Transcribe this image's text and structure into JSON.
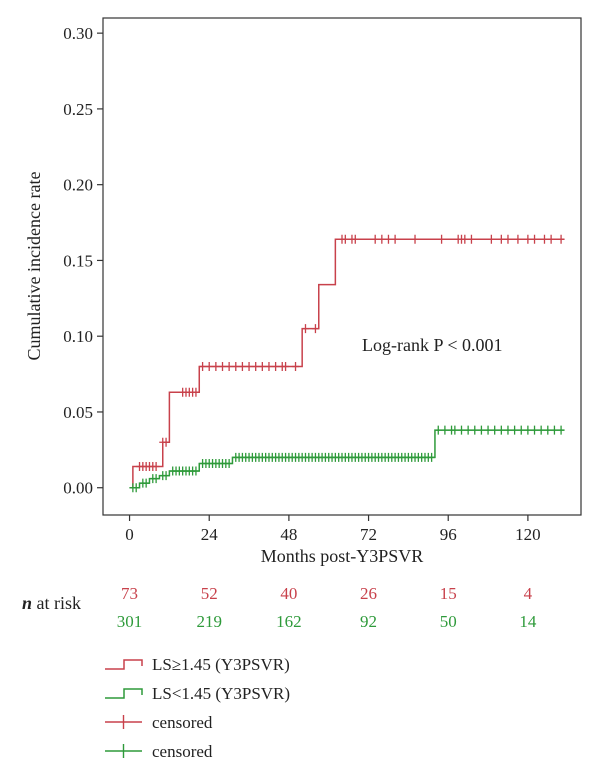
{
  "chart_data": {
    "type": "line",
    "subtype": "step",
    "xlabel": "Months post-Y3PSVR",
    "ylabel": "Cumulative incidence rate",
    "xlim": [
      -8,
      136
    ],
    "ylim": [
      -0.018,
      0.31
    ],
    "xticks": [
      0,
      24,
      48,
      72,
      96,
      120
    ],
    "yticks": [
      0.0,
      0.05,
      0.1,
      0.15,
      0.2,
      0.25,
      0.3
    ],
    "ytick_labels": [
      "0.00",
      "0.05",
      "0.10",
      "0.15",
      "0.20",
      "0.25",
      "0.30"
    ],
    "grid": false,
    "annotation": "Log-rank P < 0.001",
    "series": [
      {
        "name": "LS≥1.45 (Y3PSVR)",
        "color": "#c8414b",
        "steps": [
          [
            0,
            0.0
          ],
          [
            1,
            0.014
          ],
          [
            10,
            0.03
          ],
          [
            12,
            0.063
          ],
          [
            21,
            0.08
          ],
          [
            52,
            0.105
          ],
          [
            57,
            0.134
          ],
          [
            62,
            0.164
          ],
          [
            131,
            0.164
          ]
        ],
        "censored_x": [
          3,
          4,
          5,
          6,
          7,
          8,
          10,
          11,
          16,
          17,
          18,
          19,
          20,
          22,
          24,
          26,
          28,
          30,
          32,
          34,
          36,
          38,
          40,
          42,
          44,
          46,
          47,
          50,
          53,
          56,
          64,
          65,
          67,
          68,
          74,
          76,
          78,
          80,
          86,
          94,
          99,
          100,
          101,
          103,
          109,
          112,
          114,
          117,
          120,
          122,
          125,
          127,
          130
        ],
        "risk_label": "",
        "at_risk": [
          73,
          52,
          40,
          26,
          15,
          4
        ]
      },
      {
        "name": "LS<1.45 (Y3PSVR)",
        "color": "#2e9a3a",
        "steps": [
          [
            0,
            0.0
          ],
          [
            3,
            0.003
          ],
          [
            6,
            0.006
          ],
          [
            9,
            0.008
          ],
          [
            12,
            0.011
          ],
          [
            21,
            0.016
          ],
          [
            31,
            0.02
          ],
          [
            92,
            0.038
          ],
          [
            131,
            0.038
          ]
        ],
        "censored_x": [
          1,
          2,
          4,
          5,
          7,
          8,
          10,
          11,
          13,
          14,
          15,
          16,
          17,
          18,
          19,
          20,
          22,
          23,
          24,
          25,
          26,
          27,
          28,
          29,
          30,
          32,
          33,
          34,
          35,
          36,
          37,
          38,
          39,
          40,
          41,
          42,
          43,
          44,
          45,
          46,
          47,
          48,
          49,
          50,
          51,
          52,
          53,
          54,
          55,
          56,
          57,
          58,
          59,
          60,
          61,
          62,
          63,
          64,
          65,
          66,
          67,
          68,
          69,
          70,
          71,
          72,
          73,
          74,
          75,
          76,
          77,
          78,
          79,
          80,
          81,
          82,
          83,
          84,
          85,
          86,
          87,
          88,
          89,
          90,
          91,
          93,
          95,
          97,
          98,
          100,
          102,
          104,
          106,
          108,
          110,
          112,
          114,
          116,
          118,
          120,
          122,
          124,
          126,
          128,
          130
        ],
        "risk_label": "",
        "at_risk": [
          301,
          219,
          162,
          92,
          50,
          14
        ]
      }
    ],
    "at_risk_title": "n at risk",
    "legend": {
      "placement": "bottom",
      "entries": [
        {
          "label": "LS≥1.45 (Y3PSVR)",
          "kind": "step",
          "color": "#c8414b"
        },
        {
          "label": "LS<1.45 (Y3PSVR)",
          "kind": "step",
          "color": "#2e9a3a"
        },
        {
          "label": "censored",
          "kind": "cross",
          "color": "#c8414b"
        },
        {
          "label": "censored",
          "kind": "cross",
          "color": "#2e9a3a"
        }
      ]
    }
  }
}
